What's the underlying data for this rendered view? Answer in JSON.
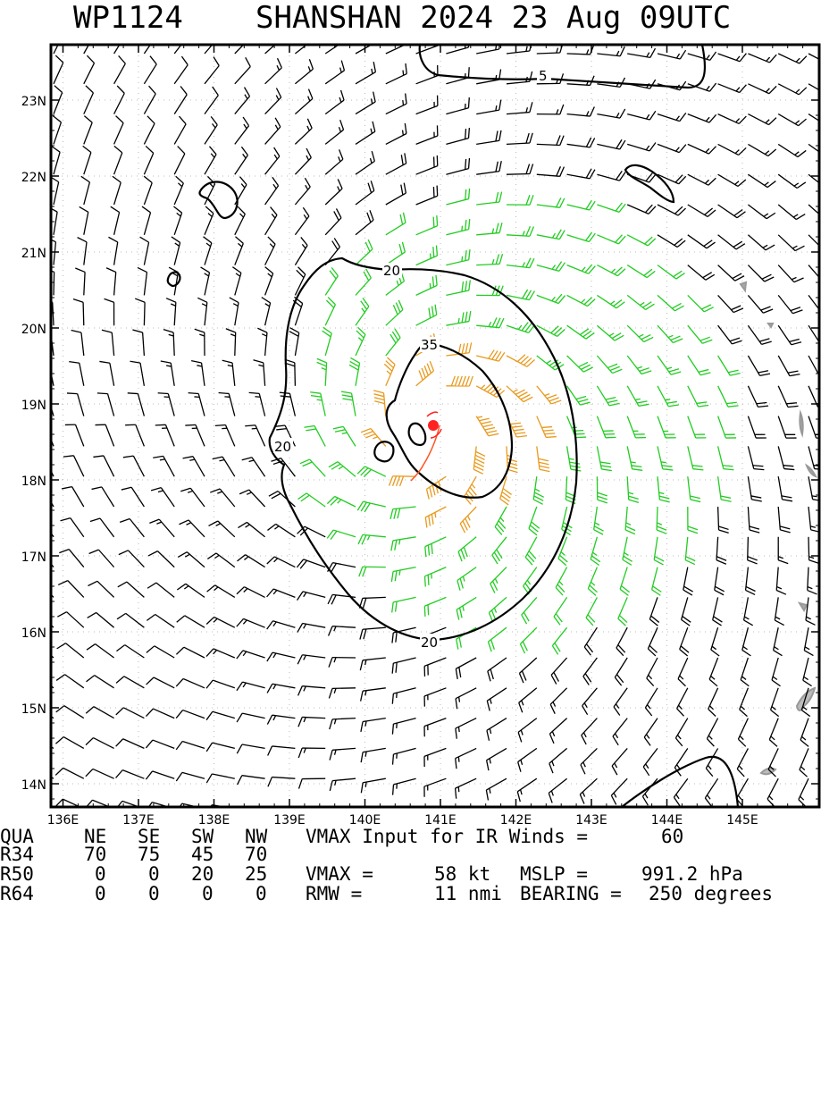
{
  "header": {
    "storm_id": "WP1124",
    "storm_info": "SHANSHAN 2024 23 Aug 09UTC"
  },
  "map": {
    "lon_labels": [
      "136E",
      "137E",
      "138E",
      "139E",
      "140E",
      "141E",
      "142E",
      "143E",
      "144E",
      "145E"
    ],
    "lat_labels": [
      "23N",
      "22N",
      "21N",
      "20N",
      "19N",
      "18N",
      "17N",
      "16N",
      "15N",
      "14N"
    ],
    "contour_labels": [
      "5",
      "20",
      "20",
      "20",
      "35"
    ],
    "storm_center": {
      "lon": 140.9,
      "lat": 18.7
    },
    "colors": {
      "barb_black": "#000000",
      "barb_green": "#22cc22",
      "barb_orange": "#e89a1e",
      "center": "#ff2222",
      "contour": "#000000",
      "land": "#999999"
    }
  },
  "table": {
    "header": {
      "c0": "QUA",
      "c1": "NE",
      "c2": "SE",
      "c3": "SW",
      "c4": "NW",
      "c5": "VMAX Input for IR Winds =",
      "c6": "60"
    },
    "r34": {
      "c0": "R34",
      "c1": "70",
      "c2": "75",
      "c3": "45",
      "c4": "70"
    },
    "r50": {
      "c0": "R50",
      "c1": "0",
      "c2": "0",
      "c3": "20",
      "c4": "25",
      "c5": "VMAX =",
      "c6": "58 kt",
      "c7": "MSLP =",
      "c8": "991.2 hPa"
    },
    "r64": {
      "c0": "R64",
      "c1": "0",
      "c2": "0",
      "c3": "0",
      "c4": "0",
      "c5": "RMW =",
      "c6": "11 nmi",
      "c7": "BEARING =",
      "c8": "250 degrees"
    }
  }
}
